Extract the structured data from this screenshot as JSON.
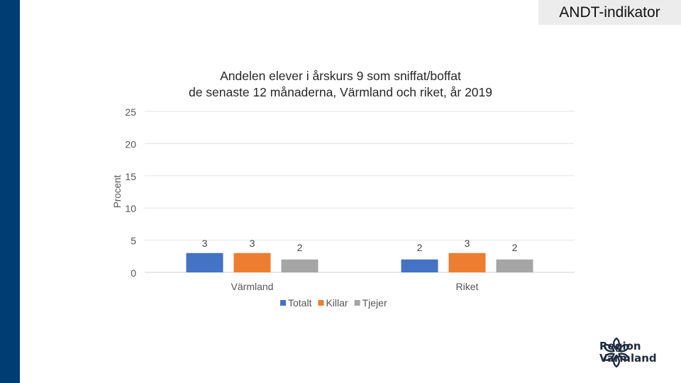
{
  "badge": "ANDT-indikator",
  "logo": {
    "line1": "Region",
    "line2": "Värmland",
    "icon": "snowflake-flower-icon"
  },
  "colors": {
    "sidebar": "#003d73",
    "totalt": "#4472c4",
    "killar": "#ed7d31",
    "tjejer": "#a5a5a5"
  },
  "chart_data": {
    "type": "bar",
    "title_line1": "Andelen elever i årskurs 9 som sniffat/boffat",
    "title_line2": "de senaste 12 månaderna, Värmland och riket, år 2019",
    "ylabel": "Procent",
    "xlabel": "",
    "ylim": [
      0,
      25
    ],
    "yticks": [
      0,
      5,
      10,
      15,
      20,
      25
    ],
    "grid": true,
    "legend_position": "bottom",
    "categories": [
      "Värmland",
      "Riket"
    ],
    "series": [
      {
        "name": "Totalt",
        "values": [
          3,
          2
        ],
        "color": "#4472c4"
      },
      {
        "name": "Killar",
        "values": [
          3,
          3
        ],
        "color": "#ed7d31"
      },
      {
        "name": "Tjejer",
        "values": [
          2,
          2
        ],
        "color": "#a5a5a5"
      }
    ]
  }
}
